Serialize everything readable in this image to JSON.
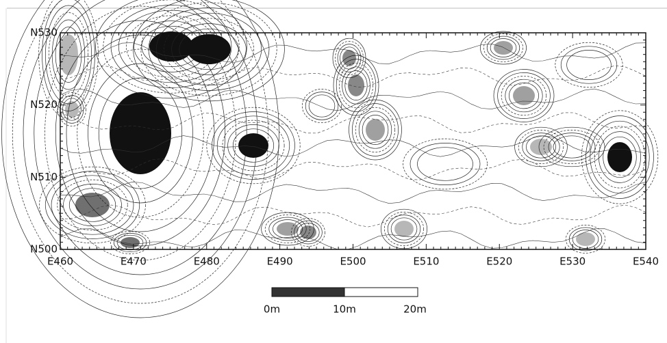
{
  "map": {
    "y_labels": [
      "N530",
      "N520",
      "N510",
      "N500"
    ],
    "x_labels": [
      "E460",
      "E470",
      "E480",
      "E490",
      "E500",
      "E510",
      "E520",
      "E530",
      "E540"
    ],
    "scale_bar": {
      "labels": [
        "0m",
        "10m",
        "20m"
      ]
    }
  }
}
